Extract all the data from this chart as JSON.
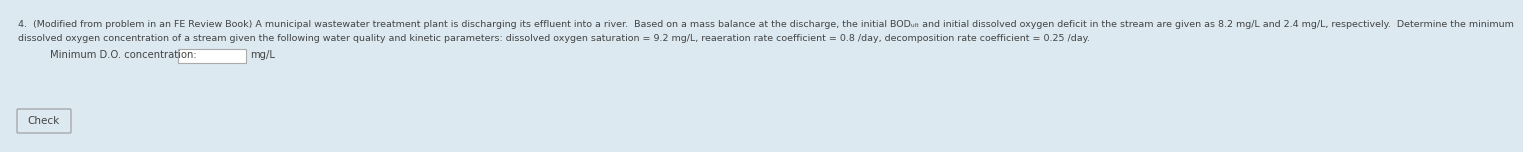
{
  "background_color": "#dce9f0",
  "line1": "4.  (Modified from problem in an FE Review Book) A municipal wastewater treatment plant is discharging its effluent into a river.  Based on a mass balance at the discharge, the initial BODᵤₗₜ and initial dissolved oxygen deficit in the stream are given as 8.2 mg/L and 2.4 mg/L, respectively.  Determine the minimum",
  "line2": "dissolved oxygen concentration of a stream given the following water quality and kinetic parameters: dissolved oxygen saturation = 9.2 mg/L, reaeration rate coefficient = 0.8 /day, decomposition rate coefficient = 0.25 /day.",
  "label_do": "Minimum D.O. concentration:",
  "unit_do": "mg/L",
  "button_text": "Check",
  "text_fontsize": 6.8,
  "label_fontsize": 7.2,
  "button_fontsize": 7.5,
  "text_color": "#444444",
  "button_color": "#cccccc"
}
